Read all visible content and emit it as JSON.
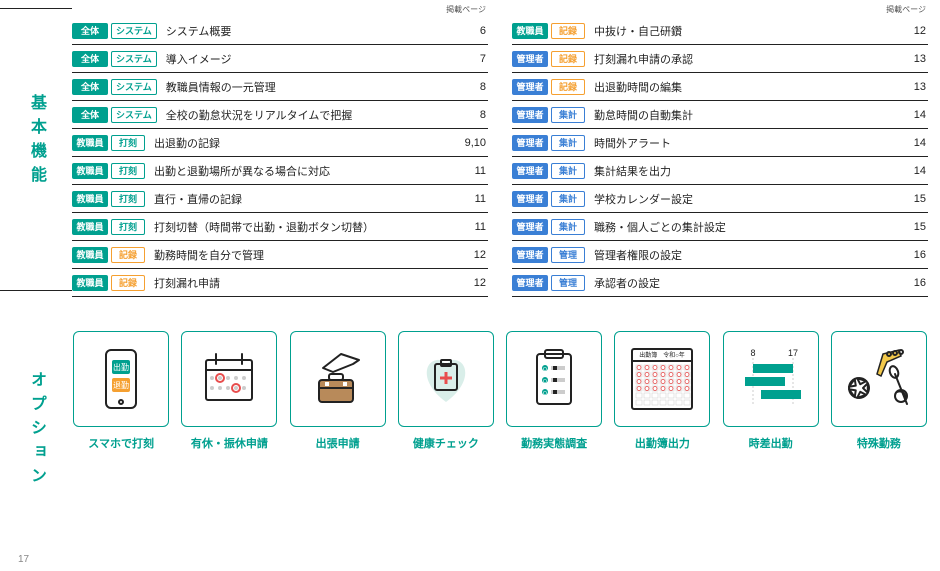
{
  "colors": {
    "teal": "#00a08f",
    "orange": "#f5a031",
    "blue": "#3a7fd5",
    "text": "#222222",
    "gray": "#888888"
  },
  "section_basic_label": "基本機能",
  "section_option_label": "オプション",
  "page_footer": "17",
  "table_header": "掲載ページ",
  "roles": {
    "all": {
      "label": "全体",
      "bg": "#00a08f"
    },
    "staff": {
      "label": "教職員",
      "bg": "#00a08f"
    },
    "admin": {
      "label": "管理者",
      "bg": "#3a7fd5"
    }
  },
  "types": {
    "system": {
      "label": "システム",
      "color": "#00a08f"
    },
    "clock": {
      "label": "打刻",
      "color": "#00a08f"
    },
    "record": {
      "label": "記録",
      "color": "#f5a031"
    },
    "agg": {
      "label": "集計",
      "color": "#3a7fd5"
    },
    "manage": {
      "label": "管理",
      "color": "#3a7fd5"
    }
  },
  "left_rows": [
    {
      "role": "all",
      "type": "system",
      "title": "システム概要",
      "page": "6"
    },
    {
      "role": "all",
      "type": "system",
      "title": "導入イメージ",
      "page": "7"
    },
    {
      "role": "all",
      "type": "system",
      "title": "教職員情報の一元管理",
      "page": "8"
    },
    {
      "role": "all",
      "type": "system",
      "title": "全校の勤怠状況をリアルタイムで把握",
      "page": "8"
    },
    {
      "role": "staff",
      "type": "clock",
      "title": "出退勤の記録",
      "page": "9,10"
    },
    {
      "role": "staff",
      "type": "clock",
      "title": "出勤と退勤場所が異なる場合に対応",
      "page": "11"
    },
    {
      "role": "staff",
      "type": "clock",
      "title": "直行・直帰の記録",
      "page": "11"
    },
    {
      "role": "staff",
      "type": "clock",
      "title": "打刻切替（時間帯で出勤・退勤ボタン切替）",
      "page": "11"
    },
    {
      "role": "staff",
      "type": "record",
      "title": "勤務時間を自分で管理",
      "page": "12"
    },
    {
      "role": "staff",
      "type": "record",
      "title": "打刻漏れ申請",
      "page": "12"
    }
  ],
  "right_rows": [
    {
      "role": "staff",
      "type": "record",
      "title": "中抜け・自己研鑽",
      "page": "12"
    },
    {
      "role": "admin",
      "type": "record",
      "title": "打刻漏れ申請の承認",
      "page": "13"
    },
    {
      "role": "admin",
      "type": "record",
      "title": "出退勤時間の編集",
      "page": "13"
    },
    {
      "role": "admin",
      "type": "agg",
      "title": "勤怠時間の自動集計",
      "page": "14"
    },
    {
      "role": "admin",
      "type": "agg",
      "title": "時間外アラート",
      "page": "14"
    },
    {
      "role": "admin",
      "type": "agg",
      "title": "集計結果を出力",
      "page": "14"
    },
    {
      "role": "admin",
      "type": "agg",
      "title": "学校カレンダー設定",
      "page": "15"
    },
    {
      "role": "admin",
      "type": "agg",
      "title": "職務・個人ごとの集計設定",
      "page": "15"
    },
    {
      "role": "admin",
      "type": "manage",
      "title": "管理者権限の設定",
      "page": "16"
    },
    {
      "role": "admin",
      "type": "manage",
      "title": "承認者の設定",
      "page": "16"
    }
  ],
  "options": [
    {
      "key": "smartphone",
      "label": "スマホで打刻"
    },
    {
      "key": "leave",
      "label": "有休・振休申請"
    },
    {
      "key": "trip",
      "label": "出張申請"
    },
    {
      "key": "health",
      "label": "健康チェック"
    },
    {
      "key": "survey",
      "label": "勤務実態調査"
    },
    {
      "key": "book",
      "label": "出勤簿出力"
    },
    {
      "key": "shift",
      "label": "時差出勤"
    },
    {
      "key": "special",
      "label": "特殊勤務"
    }
  ],
  "option_glyphs": {
    "smartphone": {
      "in": "出勤",
      "out": "退勤"
    },
    "book_title": "出勤簿　令和○年",
    "shift_start": "8",
    "shift_end": "17"
  }
}
